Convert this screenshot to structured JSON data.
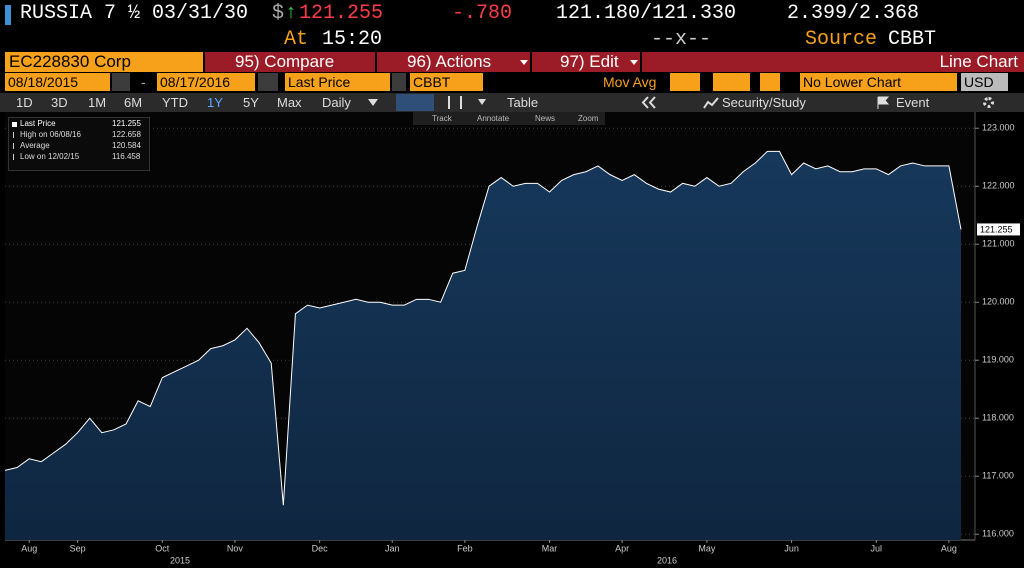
{
  "header": {
    "security": "RUSSIA 7 ½ 03/31/30",
    "currency": "$",
    "arrow": "↑",
    "price": "121.255",
    "change": "-.780",
    "bid_ask": "121.180/121.330",
    "yields": "2.399/2.368",
    "time_label": "At",
    "time": "15:20",
    "size": "--x--",
    "source_label": "Source",
    "source": "CBBT"
  },
  "menu": {
    "ticker": "EC228830 Corp",
    "compare": "95) Compare",
    "actions": "96) Actions",
    "edit": "97) Edit",
    "view": "Line Chart"
  },
  "settings": {
    "start": "08/18/2015",
    "separator": "-",
    "end": "08/17/2016",
    "field": "Last Price",
    "source": "CBBT",
    "study": "Mov Avg",
    "lower": "No Lower Chart",
    "currency": "USD"
  },
  "toolbar": {
    "periods": [
      "1D",
      "3D",
      "1M",
      "6M",
      "YTD",
      "1Y",
      "5Y",
      "Max"
    ],
    "frequency": "Daily",
    "table": "Table",
    "security_study": "Security/Study",
    "event": "Event"
  },
  "tools": [
    "Track",
    "Annotate",
    "News",
    "Zoom"
  ],
  "chart_data": {
    "type": "area",
    "categories": [
      null,
      null,
      "Aug",
      null,
      null,
      null,
      "Sep",
      null,
      null,
      null,
      null,
      null,
      null,
      "Oct",
      null,
      null,
      null,
      null,
      null,
      "Nov",
      null,
      null,
      null,
      null,
      null,
      null,
      "Dec",
      null,
      null,
      null,
      null,
      null,
      "Jan",
      null,
      null,
      null,
      null,
      null,
      "Feb",
      null,
      null,
      null,
      null,
      null,
      null,
      "Mar",
      null,
      null,
      null,
      null,
      null,
      "Apr",
      null,
      null,
      null,
      null,
      null,
      null,
      "May",
      null,
      null,
      null,
      null,
      null,
      null,
      "Jun",
      null,
      null,
      null,
      null,
      null,
      null,
      "Jul",
      null,
      null,
      null,
      null,
      null,
      "Aug",
      null
    ],
    "year_labels": [
      "2015",
      "2016"
    ],
    "series": [
      {
        "name": "Last Price",
        "color": "#ffffff",
        "fill_color": "#16385b",
        "values": [
          117.1,
          117.15,
          117.3,
          117.25,
          117.4,
          117.55,
          117.75,
          118.0,
          117.75,
          117.8,
          117.9,
          118.3,
          118.2,
          118.7,
          118.8,
          118.9,
          119.0,
          119.2,
          119.25,
          119.35,
          119.55,
          119.3,
          118.95,
          116.5,
          119.8,
          119.95,
          119.9,
          119.95,
          120.0,
          120.05,
          120.0,
          120.0,
          119.95,
          119.95,
          120.05,
          120.05,
          120.0,
          120.5,
          120.55,
          121.3,
          122.0,
          122.15,
          122.0,
          122.05,
          122.05,
          121.9,
          122.1,
          122.2,
          122.25,
          122.35,
          122.2,
          122.1,
          122.2,
          122.05,
          121.95,
          121.9,
          122.05,
          122.0,
          122.15,
          122.0,
          122.05,
          122.25,
          122.4,
          122.6,
          122.6,
          122.2,
          122.4,
          122.3,
          122.35,
          122.25,
          122.25,
          122.3,
          122.3,
          122.2,
          122.35,
          122.4,
          122.35,
          122.35,
          122.35,
          121.255
        ]
      }
    ],
    "legend_stats": [
      {
        "label": "High on 06/08/16",
        "value": 122.658
      },
      {
        "label": "Average",
        "value": 120.584
      },
      {
        "label": "Low on 12/02/15",
        "value": 116.458
      }
    ],
    "ylim": [
      115.9,
      123.28
    ],
    "yticks": [
      {
        "value": 116,
        "label": "116.000"
      },
      {
        "value": 117,
        "label": "117.000"
      },
      {
        "value": 118,
        "label": "118.000"
      },
      {
        "value": 119,
        "label": "119.000"
      },
      {
        "value": 120,
        "label": "120.000"
      },
      {
        "value": 121,
        "label": "121.000"
      },
      {
        "value": 122,
        "label": "122.000"
      },
      {
        "value": 123,
        "label": "123.000"
      }
    ],
    "grid": true
  }
}
